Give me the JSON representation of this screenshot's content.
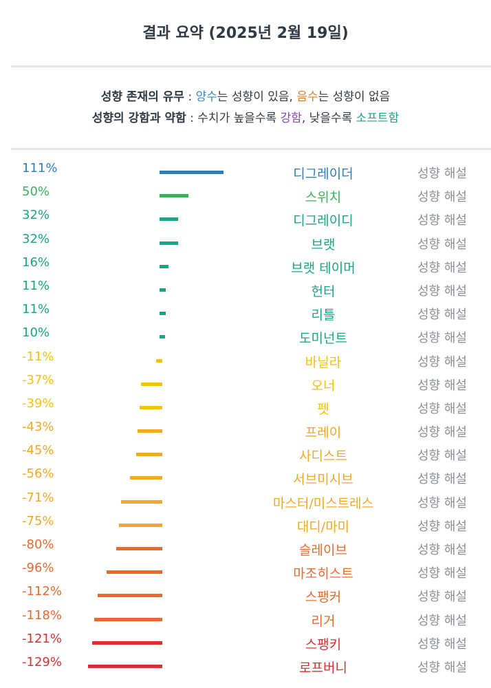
{
  "title": "결과 요약 (2025년 2월 19일)",
  "legend": {
    "line1_bold": "성향 존재의 유무",
    "line1_sep": " : ",
    "line1_pos": "양수",
    "line1_mid": "는 성향이 있음, ",
    "line1_neg": "음수",
    "line1_end": "는 성향이 없음",
    "line2_bold": "성향의 강함과 약함",
    "line2_sep": " : ",
    "line2_a": "수치가 높을수록 ",
    "line2_strong": "강함",
    "line2_b": ", 낮을수록 ",
    "line2_soft": "소프트함",
    "colors": {
      "pos": "#3a88c4",
      "neg": "#e67e22",
      "strong": "#8e44ad",
      "soft": "#16a58a"
    }
  },
  "explain_label": "성향 해설",
  "chart_data": {
    "type": "bar",
    "title": "결과 요약 (2025년 2월 19일)",
    "categories": [
      "디그레이더",
      "스위치",
      "디그레이디",
      "브랫",
      "브랫 테이머",
      "헌터",
      "리틀",
      "도미넌트",
      "바닐라",
      "오너",
      "펫",
      "프레이",
      "사디스트",
      "서브미시브",
      "마스터/미스트레스",
      "대디/마미",
      "슬레이브",
      "마조히스트",
      "스팽커",
      "리거",
      "스팽키",
      "로프버니"
    ],
    "values": [
      111,
      50,
      32,
      32,
      16,
      11,
      11,
      10,
      -11,
      -37,
      -39,
      -43,
      -45,
      -56,
      -71,
      -75,
      -80,
      -96,
      -112,
      -118,
      -121,
      -129
    ],
    "labels": [
      "111%",
      "50%",
      "32%",
      "32%",
      "16%",
      "11%",
      "11%",
      "10%",
      "-11%",
      "-37%",
      "-39%",
      "-43%",
      "-45%",
      "-56%",
      "-71%",
      "-75%",
      "-80%",
      "-96%",
      "-112%",
      "-118%",
      "-121%",
      "-129%"
    ],
    "colors": [
      "#2e7fb3",
      "#3bb15c",
      "#1aa384",
      "#1aa384",
      "#1aa384",
      "#1aa384",
      "#1aa384",
      "#1aa384",
      "#f2c20f",
      "#f2c20f",
      "#f2c20f",
      "#efa82a",
      "#efa82a",
      "#efa82a",
      "#efa82a",
      "#efa82a",
      "#e56a2d",
      "#e56a2d",
      "#e56a2d",
      "#e56a2d",
      "#d63030",
      "#d63030"
    ]
  }
}
